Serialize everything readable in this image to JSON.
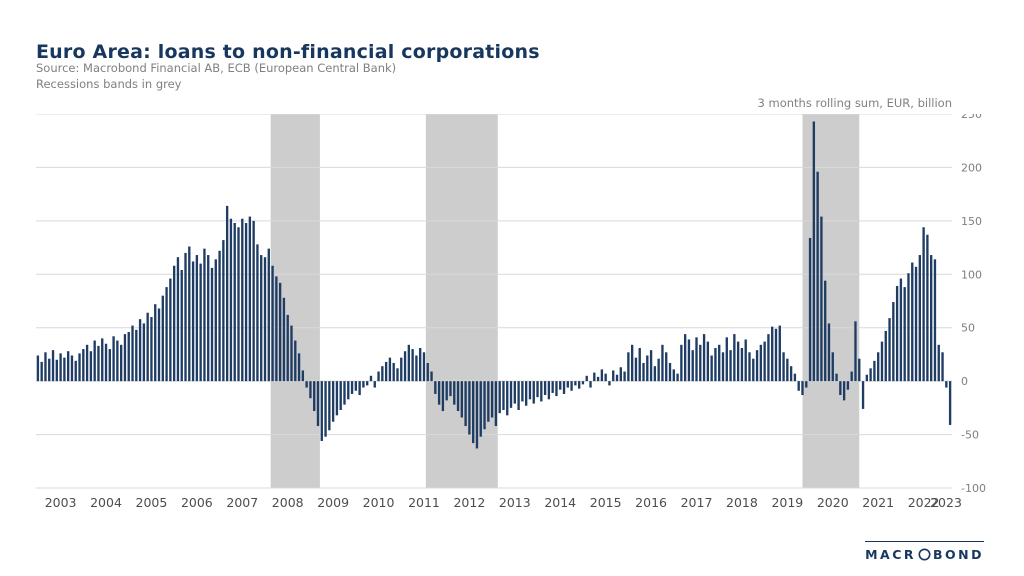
{
  "header": {
    "title": "Euro Area: loans to non-financial corporations",
    "source_line1": "Source: Macrobond Financial AB, ECB (European Central Bank)",
    "source_line2": "Recessions bands in grey",
    "unit_label": "3 months rolling sum, EUR, billion"
  },
  "chart_data": {
    "type": "bar",
    "title": "Euro Area: loans to non-financial corporations",
    "ylabel": "3 months rolling sum, EUR, billion",
    "xlabel": "",
    "frequency": "monthly",
    "start": "2003-01",
    "end": "2023-02",
    "ylim": [
      -100,
      250
    ],
    "yticks": [
      250,
      200,
      150,
      100,
      50,
      0,
      -50,
      -100
    ],
    "grid": true,
    "legend": "none",
    "x_year_labels": [
      "2003",
      "2004",
      "2005",
      "2006",
      "2007",
      "2008",
      "2009",
      "2010",
      "2011",
      "2012",
      "2013",
      "2014",
      "2015",
      "2016",
      "2017",
      "2018",
      "2019",
      "2020",
      "2021",
      "2022",
      "2023"
    ],
    "recession_bands": [
      [
        62,
        75
      ],
      [
        103,
        122
      ],
      [
        202.5,
        217.5
      ]
    ],
    "recession_band_note": "Recessions bands in grey",
    "bar_color": "#1e3c64",
    "band_color": "#cdcdcd",
    "grid_color": "#d9d9d9",
    "title_color": "#17375e",
    "values": [
      24,
      18,
      27,
      21,
      29,
      20,
      26,
      22,
      28,
      24,
      19,
      26,
      30,
      34,
      28,
      38,
      33,
      40,
      35,
      30,
      42,
      38,
      34,
      44,
      46,
      52,
      48,
      58,
      54,
      64,
      60,
      72,
      68,
      80,
      88,
      96,
      108,
      116,
      104,
      120,
      126,
      112,
      118,
      110,
      124,
      118,
      106,
      114,
      122,
      132,
      164,
      152,
      148,
      144,
      152,
      148,
      154,
      150,
      128,
      118,
      116,
      124,
      108,
      98,
      92,
      78,
      62,
      52,
      38,
      26,
      10,
      -6,
      -16,
      -28,
      -42,
      -56,
      -52,
      -46,
      -38,
      -32,
      -27,
      -22,
      -17,
      -12,
      -9,
      -13,
      -6,
      -4,
      5,
      -6,
      9,
      14,
      18,
      22,
      17,
      12,
      22,
      28,
      34,
      30,
      24,
      31,
      27,
      17,
      9,
      -12,
      -22,
      -28,
      -18,
      -14,
      -22,
      -28,
      -34,
      -42,
      -50,
      -58,
      -63,
      -52,
      -45,
      -38,
      -34,
      -42,
      -30,
      -27,
      -32,
      -25,
      -21,
      -27,
      -19,
      -23,
      -17,
      -21,
      -15,
      -19,
      -13,
      -17,
      -11,
      -14,
      -8,
      -12,
      -6,
      -9,
      -4,
      -7,
      -3,
      5,
      -6,
      8,
      4,
      11,
      7,
      -4,
      10,
      6,
      13,
      9,
      27,
      34,
      22,
      31,
      17,
      24,
      29,
      14,
      21,
      34,
      27,
      17,
      11,
      7,
      34,
      44,
      39,
      29,
      41,
      34,
      44,
      37,
      24,
      31,
      34,
      27,
      41,
      29,
      44,
      37,
      31,
      39,
      27,
      21,
      29,
      34,
      37,
      44,
      51,
      49,
      52,
      27,
      21,
      14,
      7,
      -9,
      -13,
      -6,
      134,
      243,
      196,
      154,
      94,
      54,
      27,
      7,
      -13,
      -18,
      -8,
      9,
      56,
      21,
      -26,
      6,
      12,
      19,
      27,
      37,
      47,
      59,
      74,
      89,
      96,
      88,
      101,
      111,
      107,
      118,
      144,
      137,
      118,
      114,
      34,
      27,
      -6,
      -41
    ]
  },
  "footer": {
    "logo_text_before_o": "MACR",
    "logo_text_after_o": "BOND"
  }
}
